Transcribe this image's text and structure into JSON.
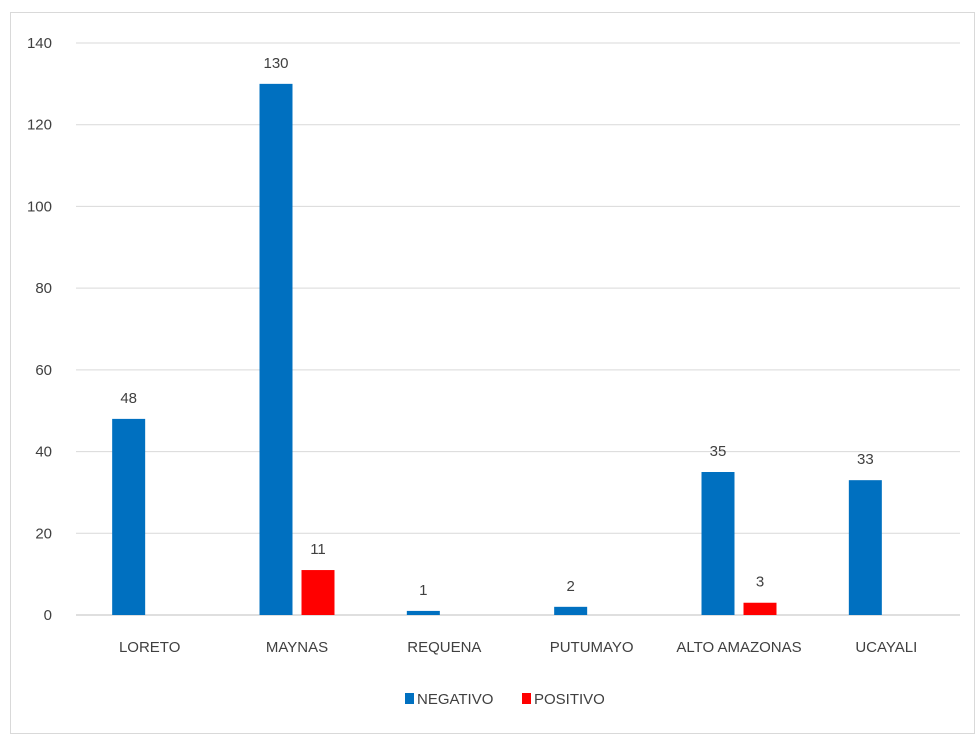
{
  "chart_data": {
    "type": "bar",
    "categories": [
      "LORETO",
      "MAYNAS",
      "REQUENA",
      "PUTUMAYO",
      "ALTO AMAZONAS",
      "UCAYALI"
    ],
    "series": [
      {
        "name": "NEGATIVO",
        "color": "#0070c0",
        "values": [
          48,
          130,
          1,
          2,
          35,
          33
        ]
      },
      {
        "name": "POSITIVO",
        "color": "#ff0000",
        "values": [
          0,
          11,
          0,
          0,
          3,
          0
        ]
      }
    ],
    "data_labels": {
      "NEGATIVO": [
        "48",
        "130",
        "1",
        "2",
        "35",
        "33"
      ],
      "POSITIVO": [
        "",
        "11",
        "",
        "",
        "3",
        ""
      ]
    },
    "y_ticks": [
      0,
      20,
      40,
      60,
      80,
      100,
      120,
      140
    ],
    "ylim": [
      0,
      140
    ],
    "grid": true,
    "legend_position": "bottom"
  }
}
